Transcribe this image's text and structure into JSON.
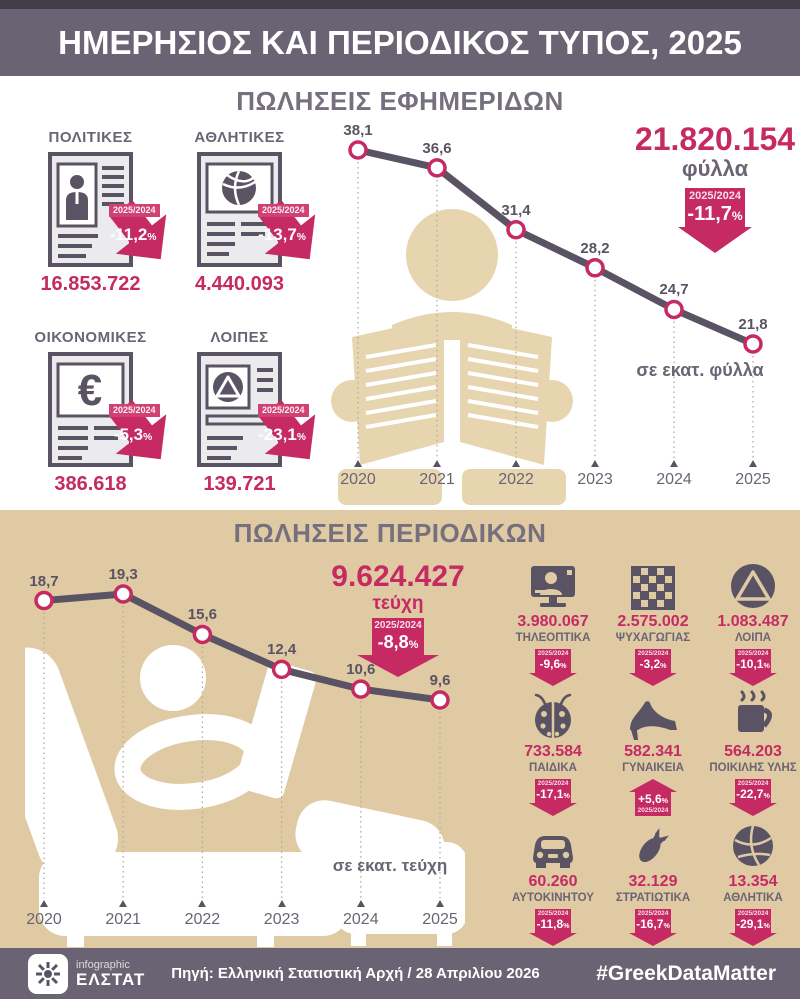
{
  "misc": {
    "percent_sign": "%"
  },
  "header": {
    "title": "ΗΜΕΡΗΣΙΟΣ ΚΑΙ ΠΕΡΙΟΔΙΚΟΣ ΤΥΠΟΣ, 2025"
  },
  "colors": {
    "accent_pink": "#c62a62",
    "slate": "#5a5363",
    "bar_purple": "#6a6373",
    "tan": "#dfcaa3",
    "figure_beige": "#e7d5b0"
  },
  "newspapers": {
    "title": "ΠΩΛΗΣΕΙΣ ΕΦΗΜΕΡΙΔΩΝ",
    "axis_note": "σε εκατ. φύλλα",
    "total": {
      "value": "21.820.154",
      "unit": "φύλλα",
      "ratio_label": "2025/2024",
      "change": "-11,7"
    },
    "categories": [
      {
        "label": "ΠΟΛΙΤΙΚΕΣ",
        "value": "16.853.722",
        "ratio_label": "2025/2024",
        "change": "-11,2",
        "icon": "person-newspaper-icon"
      },
      {
        "label": "ΑΘΛΗΤΙΚΕΣ",
        "value": "4.440.093",
        "ratio_label": "2025/2024",
        "change": "-13,7",
        "icon": "basketball-newspaper-icon"
      },
      {
        "label": "ΟΙΚΟΝΟΜΙΚΕΣ",
        "value": "386.618",
        "ratio_label": "2025/2024",
        "change": "-5,3",
        "icon": "euro-newspaper-icon"
      },
      {
        "label": "ΛΟΙΠΕΣ",
        "value": "139.721",
        "ratio_label": "2025/2024",
        "change": "-23,1",
        "icon": "triangle-newspaper-icon"
      }
    ]
  },
  "magazines": {
    "title": "ΠΩΛΗΣΕΙΣ ΠΕΡΙΟΔΙΚΩΝ",
    "axis_note": "σε εκατ. τεύχη",
    "total": {
      "value": "9.624.427",
      "unit": "τεύχη",
      "ratio_label": "2025/2024",
      "change": "-8,8"
    },
    "categories": [
      {
        "label": "ΤΗΛΕΟΠΤΙΚΑ",
        "value": "3.980.067",
        "ratio_label": "2025/2024",
        "change": "-9,6",
        "direction": "down",
        "icon": "tv-icon"
      },
      {
        "label": "ΨΥΧΑΓΩΓΙΑΣ",
        "value": "2.575.002",
        "ratio_label": "2025/2024",
        "change": "-3,2",
        "direction": "down",
        "icon": "crossword-icon"
      },
      {
        "label": "ΛΟΙΠΑ",
        "value": "1.083.487",
        "ratio_label": "2025/2024",
        "change": "-10,1",
        "direction": "down",
        "icon": "triangle-circle-icon"
      },
      {
        "label": "ΠΑΙΔΙΚΑ",
        "value": "733.584",
        "ratio_label": "2025/2024",
        "change": "-17,1",
        "direction": "down",
        "icon": "ladybug-icon"
      },
      {
        "label": "ΓΥΝΑΙΚΕΙΑ",
        "value": "582.341",
        "ratio_label": "2025/2024",
        "change": "+5,6",
        "direction": "up",
        "icon": "high-heel-icon"
      },
      {
        "label": "ΠΟΙΚΙΛΗΣ ΥΛΗΣ",
        "value": "564.203",
        "ratio_label": "2025/2024",
        "change": "-22,7",
        "direction": "down",
        "icon": "coffee-cup-icon"
      },
      {
        "label": "ΑΥΤΟΚΙΝΗΤΟΥ",
        "value": "60.260",
        "ratio_label": "2025/2024",
        "change": "-11,8",
        "direction": "down",
        "icon": "car-icon"
      },
      {
        "label": "ΣΤΡΑΤΙΩΤΙΚΑ",
        "value": "32.129",
        "ratio_label": "2025/2024",
        "change": "-16,7",
        "direction": "down",
        "icon": "bomb-icon"
      },
      {
        "label": "ΑΘΛΗΤΙΚΑ",
        "value": "13.354",
        "ratio_label": "2025/2024",
        "change": "-29,1",
        "direction": "down",
        "icon": "volleyball-icon"
      }
    ]
  },
  "chart_data": [
    {
      "type": "line",
      "id": "newspapers",
      "title": "ΠΩΛΗΣΕΙΣ ΕΦΗΜΕΡΙΔΩΝ",
      "unit": "σε εκατ. φύλλα",
      "categories": [
        "2020",
        "2021",
        "2022",
        "2023",
        "2024",
        "2025"
      ],
      "values": [
        38.1,
        36.6,
        31.4,
        28.2,
        24.7,
        21.8
      ],
      "value_labels": [
        "38,1",
        "36,6",
        "31,4",
        "28,2",
        "24,7",
        "21,8"
      ],
      "legend_position": "none",
      "grid": "dotted-drop-lines"
    },
    {
      "type": "line",
      "id": "magazines",
      "title": "ΠΩΛΗΣΕΙΣ ΠΕΡΙΟΔΙΚΩΝ",
      "unit": "σε εκατ. τεύχη",
      "categories": [
        "2020",
        "2021",
        "2022",
        "2023",
        "2024",
        "2025"
      ],
      "values": [
        18.7,
        19.3,
        15.6,
        12.4,
        10.6,
        9.6
      ],
      "value_labels": [
        "18,7",
        "19,3",
        "15,6",
        "12,4",
        "10,6",
        "9,6"
      ],
      "legend_position": "none",
      "grid": "dotted-drop-lines"
    }
  ],
  "footer": {
    "logo_small": "infographic",
    "logo_name": "ΕΛΣΤΑΤ",
    "source": "Πηγή: Ελληνική Στατιστική Αρχή / 28 Απριλίου 2026",
    "hashtag": "#GreekDataMatter"
  }
}
